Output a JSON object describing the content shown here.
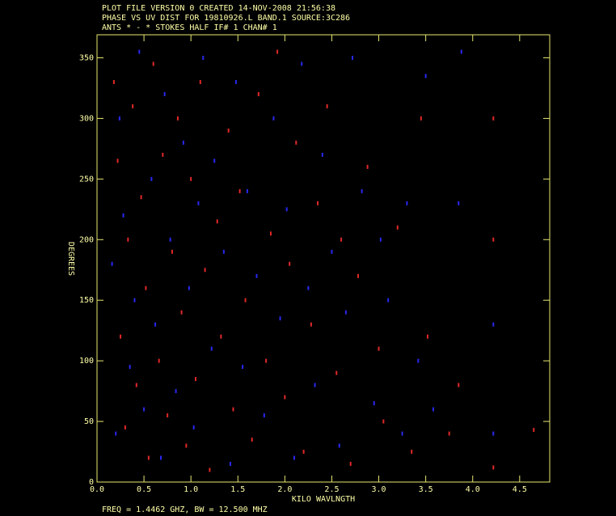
{
  "chart_data": {
    "type": "scatter",
    "header": [
      "PLOT FILE VERSION 0  CREATED 14-NOV-2008 21:56:38",
      "PHASE VS UV DIST FOR 19810926.L BAND.1   SOURCE:3C286",
      "ANTS * - *    STOKES HALF  IF# 1  CHAN# 1"
    ],
    "xlabel": "KILO WAVLNGTH",
    "ylabel": "DEGREES",
    "footer": "FREQ = 1.4462 GHZ, BW = 12.500 MHZ",
    "xlim": [
      0,
      4.82
    ],
    "ylim": [
      0,
      369
    ],
    "xticks": [
      {
        "value": 0,
        "label": "0.0"
      },
      0.5,
      {
        "value": 1,
        "label": "1.0"
      },
      1.5,
      {
        "value": 2,
        "label": "2.0"
      },
      2.5,
      {
        "value": 3,
        "label": "3.0"
      },
      3.5,
      {
        "value": 4,
        "label": "4.0"
      },
      4.5
    ],
    "yticks": [
      0,
      50,
      100,
      150,
      200,
      250,
      300,
      350
    ],
    "series": [
      {
        "color": "#e02828",
        "x": [
          0.18,
          0.22,
          0.25,
          0.3,
          0.33,
          0.38,
          0.42,
          0.47,
          0.52,
          0.55,
          0.6,
          0.66,
          0.7,
          0.75,
          0.8,
          0.86,
          0.9,
          0.95,
          1.0,
          1.05,
          1.1,
          1.15,
          1.2,
          1.28,
          1.32,
          1.4,
          1.45,
          1.52,
          1.58,
          1.65,
          1.72,
          1.8,
          1.85,
          1.92,
          2.0,
          2.05,
          2.12,
          2.2,
          2.28,
          2.35,
          2.45,
          2.55,
          2.6,
          2.7,
          2.78,
          2.88,
          3.0,
          3.05,
          3.2,
          3.35,
          3.45,
          3.52,
          3.75,
          3.85,
          4.22,
          4.22,
          4.22,
          4.65
        ],
        "values": [
          330,
          265,
          120,
          45,
          200,
          310,
          80,
          235,
          160,
          20,
          345,
          100,
          270,
          55,
          190,
          300,
          140,
          30,
          250,
          85,
          330,
          175,
          10,
          215,
          120,
          290,
          60,
          240,
          150,
          35,
          320,
          100,
          205,
          355,
          70,
          180,
          280,
          25,
          130,
          230,
          310,
          90,
          200,
          15,
          170,
          260,
          110,
          50,
          210,
          25,
          300,
          120,
          40,
          80,
          200,
          12,
          300,
          43
        ]
      },
      {
        "color": "#2828f0",
        "x": [
          0.16,
          0.2,
          0.24,
          0.28,
          0.35,
          0.4,
          0.45,
          0.5,
          0.58,
          0.62,
          0.68,
          0.72,
          0.78,
          0.84,
          0.92,
          0.98,
          1.03,
          1.08,
          1.13,
          1.22,
          1.25,
          1.35,
          1.42,
          1.48,
          1.55,
          1.6,
          1.7,
          1.78,
          1.88,
          1.95,
          2.02,
          2.1,
          2.18,
          2.25,
          2.32,
          2.4,
          2.5,
          2.58,
          2.65,
          2.72,
          2.82,
          2.95,
          3.02,
          3.1,
          3.25,
          3.3,
          3.42,
          3.5,
          3.58,
          3.85,
          3.88,
          4.22,
          4.22
        ],
        "values": [
          180,
          40,
          300,
          220,
          95,
          150,
          355,
          60,
          250,
          130,
          20,
          320,
          200,
          75,
          280,
          160,
          45,
          230,
          350,
          110,
          265,
          190,
          15,
          330,
          95,
          240,
          170,
          55,
          300,
          135,
          225,
          20,
          345,
          160,
          80,
          270,
          190,
          30,
          140,
          350,
          240,
          65,
          200,
          150,
          40,
          230,
          100,
          335,
          60,
          230,
          355,
          130,
          40
        ]
      }
    ]
  }
}
